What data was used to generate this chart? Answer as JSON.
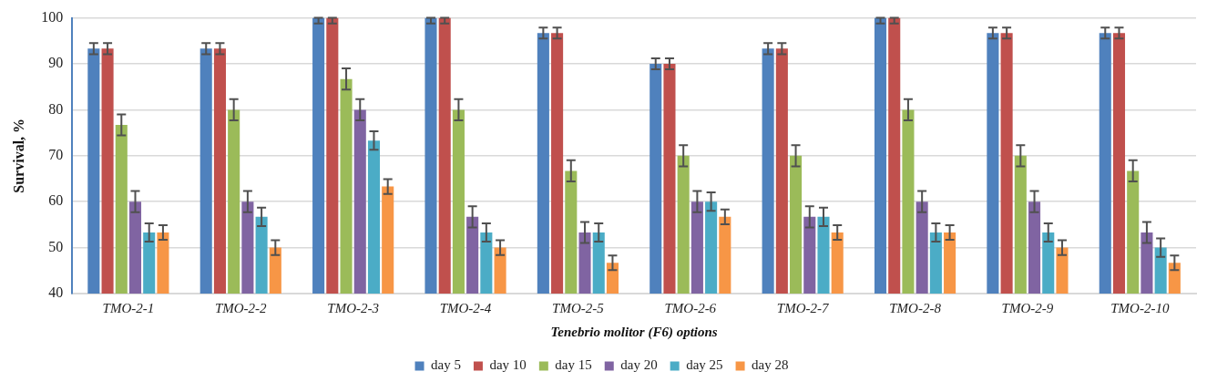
{
  "chart_data": {
    "type": "bar",
    "xlabel": "Tenebrio molitor (F6) options",
    "ylabel": "Survival, %",
    "categories": [
      "TMO-2-1",
      "TMO-2-2",
      "TMO-2-3",
      "TMO-2-4",
      "TMO-2-5",
      "TMO-2-6",
      "TMO-2-7",
      "TMO-2-8",
      "TMO-2-9",
      "TMO-2-10"
    ],
    "series": [
      {
        "name": "day 5",
        "color": "#4f81bd",
        "values": [
          93.3,
          93.3,
          100,
          100,
          96.7,
          90,
          93.3,
          100,
          96.7,
          96.7
        ],
        "errors": [
          1.2,
          1.2,
          [
            98.8,
            100
          ],
          [
            98.8,
            100
          ],
          1.2,
          1.2,
          1.2,
          [
            98.8,
            100
          ],
          1.2,
          1.2
        ]
      },
      {
        "name": "day 10",
        "color": "#c0504d",
        "values": [
          93.3,
          93.3,
          100,
          100,
          96.7,
          90,
          93.3,
          100,
          96.7,
          96.7
        ],
        "errors": [
          1.2,
          1.2,
          [
            98.8,
            100
          ],
          [
            98.8,
            100
          ],
          1.2,
          1.2,
          1.2,
          [
            98.8,
            100
          ],
          1.2,
          1.2
        ]
      },
      {
        "name": "day 15",
        "color": "#9bbb59",
        "values": [
          76.7,
          80,
          86.7,
          80,
          66.7,
          70,
          70,
          80,
          70,
          66.7
        ],
        "errors": [
          2.3,
          2.3,
          2.3,
          2.3,
          2.3,
          2.3,
          2.3,
          2.3,
          2.3,
          2.3
        ]
      },
      {
        "name": "day 20",
        "color": "#8064a2",
        "values": [
          60,
          60,
          80,
          56.7,
          53.3,
          60,
          56.7,
          60,
          60,
          53.3
        ],
        "errors": [
          2.3,
          2.3,
          2.3,
          2.3,
          2.3,
          2.3,
          2.3,
          2.3,
          2.3,
          2.3
        ]
      },
      {
        "name": "day 25",
        "color": "#4bacc6",
        "values": [
          53.3,
          56.7,
          73.3,
          53.3,
          53.3,
          60,
          56.7,
          53.3,
          53.3,
          50
        ],
        "errors": [
          2,
          2,
          2,
          2,
          2,
          2,
          2,
          2,
          2,
          2
        ]
      },
      {
        "name": "day 28",
        "color": "#f79646",
        "values": [
          53.3,
          50,
          63.3,
          50,
          46.7,
          56.7,
          53.3,
          53.3,
          50,
          46.7
        ],
        "errors": [
          1.6,
          1.6,
          1.6,
          1.6,
          1.6,
          1.6,
          1.6,
          1.6,
          1.6,
          1.6
        ]
      }
    ],
    "ylim": [
      40,
      100
    ],
    "yticks": [
      40,
      50,
      60,
      70,
      80,
      90,
      100
    ],
    "grid": "y",
    "legend": "bottom"
  }
}
